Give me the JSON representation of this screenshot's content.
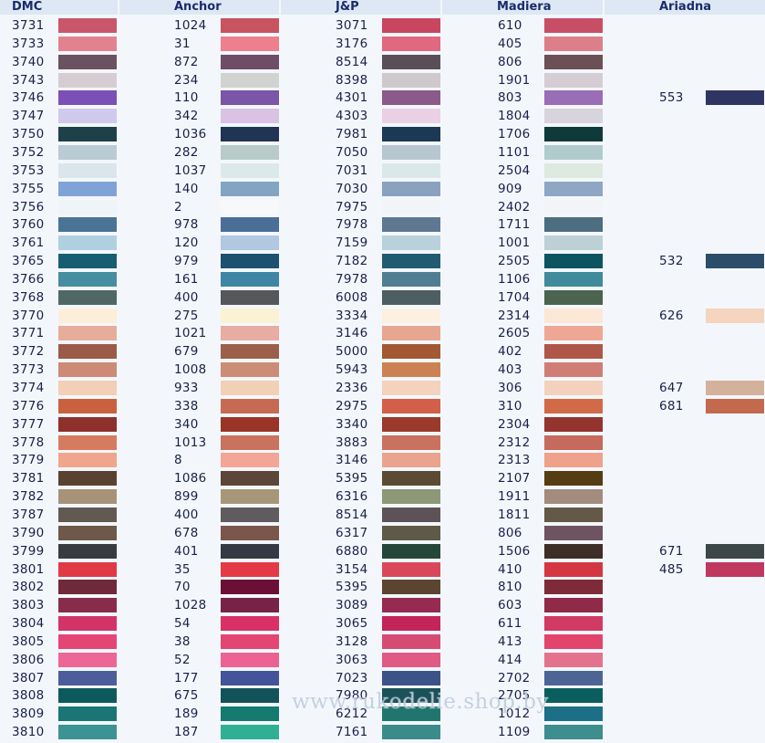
{
  "columns": [
    {
      "key": "dmc",
      "title": "DMC"
    },
    {
      "key": "anchor",
      "title": "Anchor"
    },
    {
      "key": "jp",
      "title": "J&P"
    },
    {
      "key": "madiera",
      "title": "Madiera"
    },
    {
      "key": "ariadna",
      "title": "Ariadna"
    }
  ],
  "watermark": "www.rukodelie.shop.by",
  "rows": [
    {
      "dmc": [
        "3731",
        "#c9566a"
      ],
      "anchor": [
        "1024",
        "#c8545f"
      ],
      "jp": [
        "3071",
        "#c84660"
      ],
      "madiera": [
        "610",
        "#c84e66"
      ],
      "ariadna": null
    },
    {
      "dmc": [
        "3733",
        "#e2828e"
      ],
      "anchor": [
        "31",
        "#ee7f8d"
      ],
      "jp": [
        "3176",
        "#e0687f"
      ],
      "madiera": [
        "405",
        "#dc7f88"
      ],
      "ariadna": null
    },
    {
      "dmc": [
        "3740",
        "#6b5260"
      ],
      "anchor": [
        "872",
        "#6f4d67"
      ],
      "jp": [
        "8514",
        "#5a4f58"
      ],
      "madiera": [
        "806",
        "#6b5056"
      ],
      "ariadna": null
    },
    {
      "dmc": [
        "3743",
        "#d6cdd3"
      ],
      "anchor": [
        "234",
        "#d0d3cf"
      ],
      "jp": [
        "8398",
        "#cfc8cd"
      ],
      "madiera": [
        "1901",
        "#d5cdd3"
      ],
      "ariadna": null
    },
    {
      "dmc": [
        "3746",
        "#7b4fb7"
      ],
      "anchor": [
        "110",
        "#7a55a8"
      ],
      "jp": [
        "4301",
        "#8a5b8a"
      ],
      "madiera": [
        "803",
        "#9a6db7"
      ],
      "ariadna": [
        "553",
        "#2f3563"
      ]
    },
    {
      "dmc": [
        "3747",
        "#cfc9ec"
      ],
      "anchor": [
        "342",
        "#d9c2e4"
      ],
      "jp": [
        "4303",
        "#ead0e4"
      ],
      "madiera": [
        "1804",
        "#d8d4dc"
      ],
      "ariadna": null
    },
    {
      "dmc": [
        "3750",
        "#1d4049"
      ],
      "anchor": [
        "1036",
        "#213453"
      ],
      "jp": [
        "7981",
        "#1b3854"
      ],
      "madiera": [
        "1706",
        "#0f3a39"
      ],
      "ariadna": null
    },
    {
      "dmc": [
        "3752",
        "#b9cbd3"
      ],
      "anchor": [
        "282",
        "#b8cbc9"
      ],
      "jp": [
        "7050",
        "#b8c6cf"
      ],
      "madiera": [
        "1101",
        "#b1cbcd"
      ],
      "ariadna": null
    },
    {
      "dmc": [
        "3753",
        "#dbe6ec"
      ],
      "anchor": [
        "1037",
        "#dce9eb"
      ],
      "jp": [
        "7031",
        "#dbe8e9"
      ],
      "madiera": [
        "2504",
        "#dee9df"
      ],
      "ariadna": null
    },
    {
      "dmc": [
        "3755",
        "#7fa3d6"
      ],
      "anchor": [
        "140",
        "#82a5c4"
      ],
      "jp": [
        "7030",
        "#8aa2bf"
      ],
      "madiera": [
        "909",
        "#8fa6c5"
      ],
      "ariadna": null
    },
    {
      "dmc": [
        "3756",
        "#eef4f8"
      ],
      "anchor": [
        "2",
        "#f6f8fa"
      ],
      "jp": [
        "7975",
        "#f1f5f8"
      ],
      "madiera": [
        "2402",
        "#f1f5f7"
      ],
      "ariadna": null
    },
    {
      "dmc": [
        "3760",
        "#4a7395"
      ],
      "anchor": [
        "978",
        "#4a6e98"
      ],
      "jp": [
        "7978",
        "#5f7891"
      ],
      "madiera": [
        "1711",
        "#4d6d80"
      ],
      "ariadna": null
    },
    {
      "dmc": [
        "3761",
        "#b0d0df"
      ],
      "anchor": [
        "120",
        "#b2c7e0"
      ],
      "jp": [
        "7159",
        "#b8d1db"
      ],
      "madiera": [
        "1001",
        "#bcd0d5"
      ],
      "ariadna": null
    },
    {
      "dmc": [
        "3765",
        "#175e72"
      ],
      "anchor": [
        "979",
        "#1c526f"
      ],
      "jp": [
        "7182",
        "#1f5c72"
      ],
      "madiera": [
        "2505",
        "#0c5560"
      ],
      "ariadna": [
        "532",
        "#2b4d6a"
      ]
    },
    {
      "dmc": [
        "3766",
        "#458da0"
      ],
      "anchor": [
        "161",
        "#3f86a6"
      ],
      "jp": [
        "7978",
        "#4f7e92"
      ],
      "madiera": [
        "1106",
        "#3f8a9b"
      ],
      "ariadna": null
    },
    {
      "dmc": [
        "3768",
        "#4f6865"
      ],
      "anchor": [
        "400",
        "#55575b"
      ],
      "jp": [
        "6008",
        "#4c5e62"
      ],
      "madiera": [
        "1704",
        "#4a644f"
      ],
      "ariadna": null
    },
    {
      "dmc": [
        "3770",
        "#fdeed9"
      ],
      "anchor": [
        "275",
        "#fbf2d3"
      ],
      "jp": [
        "3334",
        "#fdf0e0"
      ],
      "madiera": [
        "2314",
        "#fde7d7"
      ],
      "ariadna": [
        "626",
        "#f5d4c0"
      ]
    },
    {
      "dmc": [
        "3771",
        "#e7ac9b"
      ],
      "anchor": [
        "1021",
        "#e7aca2"
      ],
      "jp": [
        "3146",
        "#e6a68f"
      ],
      "madiera": [
        "2605",
        "#efa795"
      ],
      "ariadna": null
    },
    {
      "dmc": [
        "3772",
        "#9c5a49"
      ],
      "anchor": [
        "679",
        "#9c5f4a"
      ],
      "jp": [
        "5000",
        "#a25833"
      ],
      "madiera": [
        "402",
        "#b05649"
      ],
      "ariadna": null
    },
    {
      "dmc": [
        "3773",
        "#cd8a76"
      ],
      "anchor": [
        "1008",
        "#cc8d77"
      ],
      "jp": [
        "5943",
        "#cc8152"
      ],
      "madiera": [
        "403",
        "#d07d75"
      ],
      "ariadna": null
    },
    {
      "dmc": [
        "3774",
        "#f2cfb6"
      ],
      "anchor": [
        "933",
        "#f1d0b6"
      ],
      "jp": [
        "2336",
        "#f3d3bd"
      ],
      "madiera": [
        "306",
        "#f3d1bd"
      ],
      "ariadna": [
        "647",
        "#d4b19b"
      ]
    },
    {
      "dmc": [
        "3776",
        "#c9613f"
      ],
      "anchor": [
        "338",
        "#c76a53"
      ],
      "jp": [
        "2975",
        "#d25f49"
      ],
      "madiera": [
        "310",
        "#d16a47"
      ],
      "ariadna": [
        "681",
        "#c2694e"
      ]
    },
    {
      "dmc": [
        "3777",
        "#8e302b"
      ],
      "anchor": [
        "340",
        "#9a3427"
      ],
      "jp": [
        "3340",
        "#9b3a2a"
      ],
      "madiera": [
        "2304",
        "#93342e"
      ],
      "ariadna": null
    },
    {
      "dmc": [
        "3778",
        "#d57b60"
      ],
      "anchor": [
        "1013",
        "#c9735f"
      ],
      "jp": [
        "3883",
        "#c9725f"
      ],
      "madiera": [
        "2312",
        "#c56a5c"
      ],
      "ariadna": null
    },
    {
      "dmc": [
        "3779",
        "#f0a58d"
      ],
      "anchor": [
        "8",
        "#f3a695"
      ],
      "jp": [
        "3146",
        "#eaa38d"
      ],
      "madiera": [
        "2313",
        "#efa18b"
      ],
      "ariadna": null
    },
    {
      "dmc": [
        "3781",
        "#5a4231"
      ],
      "anchor": [
        "1086",
        "#5c4638"
      ],
      "jp": [
        "5395",
        "#5c4b33"
      ],
      "madiera": [
        "2107",
        "#553c12"
      ],
      "ariadna": null
    },
    {
      "dmc": [
        "3782",
        "#a8927a"
      ],
      "anchor": [
        "899",
        "#a89678"
      ],
      "jp": [
        "6316",
        "#8c9876"
      ],
      "madiera": [
        "1911",
        "#a38b7d"
      ],
      "ariadna": null
    },
    {
      "dmc": [
        "3787",
        "#625952"
      ],
      "anchor": [
        "400",
        "#5f5b5e"
      ],
      "jp": [
        "8514",
        "#5e5259"
      ],
      "madiera": [
        "1811",
        "#645947"
      ],
      "ariadna": null
    },
    {
      "dmc": [
        "3790",
        "#6d5849"
      ],
      "anchor": [
        "678",
        "#7b574b"
      ],
      "jp": [
        "6317",
        "#5e5a48"
      ],
      "madiera": [
        "806",
        "#6d5460"
      ],
      "ariadna": null
    },
    {
      "dmc": [
        "3799",
        "#383c40"
      ],
      "anchor": [
        "401",
        "#363a44"
      ],
      "jp": [
        "6880",
        "#24473a"
      ],
      "madiera": [
        "1506",
        "#3f2e27"
      ],
      "ariadna": [
        "671",
        "#3d4747"
      ]
    },
    {
      "dmc": [
        "3801",
        "#e03a45"
      ],
      "anchor": [
        "35",
        "#e43a45"
      ],
      "jp": [
        "3154",
        "#d9485a"
      ],
      "madiera": [
        "410",
        "#d53742"
      ],
      "ariadna": [
        "485",
        "#c03760"
      ]
    },
    {
      "dmc": [
        "3802",
        "#6e2a38"
      ],
      "anchor": [
        "70",
        "#6b0f36"
      ],
      "jp": [
        "5395",
        "#5b4531"
      ],
      "madiera": [
        "810",
        "#7f2a38"
      ],
      "ariadna": null
    },
    {
      "dmc": [
        "3803",
        "#872c4b"
      ],
      "anchor": [
        "1028",
        "#782346"
      ],
      "jp": [
        "3089",
        "#972a50"
      ],
      "madiera": [
        "603",
        "#8f2a49"
      ],
      "ariadna": null
    },
    {
      "dmc": [
        "3804",
        "#d23468"
      ],
      "anchor": [
        "54",
        "#d93066"
      ],
      "jp": [
        "3065",
        "#c3245a"
      ],
      "madiera": [
        "611",
        "#d13a62"
      ],
      "ariadna": null
    },
    {
      "dmc": [
        "3805",
        "#e44573"
      ],
      "anchor": [
        "38",
        "#e34670"
      ],
      "jp": [
        "3128",
        "#d64b74"
      ],
      "madiera": [
        "413",
        "#e2446b"
      ],
      "ariadna": null
    },
    {
      "dmc": [
        "3806",
        "#ec6795"
      ],
      "anchor": [
        "52",
        "#ec6293"
      ],
      "jp": [
        "3063",
        "#e05a86"
      ],
      "madiera": [
        "414",
        "#e4728d"
      ],
      "ariadna": null
    },
    {
      "dmc": [
        "3807",
        "#4d5c9b"
      ],
      "anchor": [
        "177",
        "#44549a"
      ],
      "jp": [
        "7023",
        "#3c538a"
      ],
      "madiera": [
        "2702",
        "#4c6595"
      ],
      "ariadna": null
    },
    {
      "dmc": [
        "3808",
        "#0d5a5e"
      ],
      "anchor": [
        "675",
        "#14525a"
      ],
      "jp": [
        "7980",
        "#1b5259"
      ],
      "madiera": [
        "2705",
        "#0a5e5e"
      ],
      "ariadna": null
    },
    {
      "dmc": [
        "3809",
        "#1a7574"
      ],
      "anchor": [
        "189",
        "#157a70"
      ],
      "jp": [
        "6212",
        "#21756f"
      ],
      "madiera": [
        "1012",
        "#1d6f87"
      ],
      "ariadna": null
    },
    {
      "dmc": [
        "3810",
        "#3b9394"
      ],
      "anchor": [
        "187",
        "#2fb095"
      ],
      "jp": [
        "7161",
        "#3c8b8b"
      ],
      "madiera": [
        "1109",
        "#3e8d8f"
      ],
      "ariadna": null
    }
  ]
}
